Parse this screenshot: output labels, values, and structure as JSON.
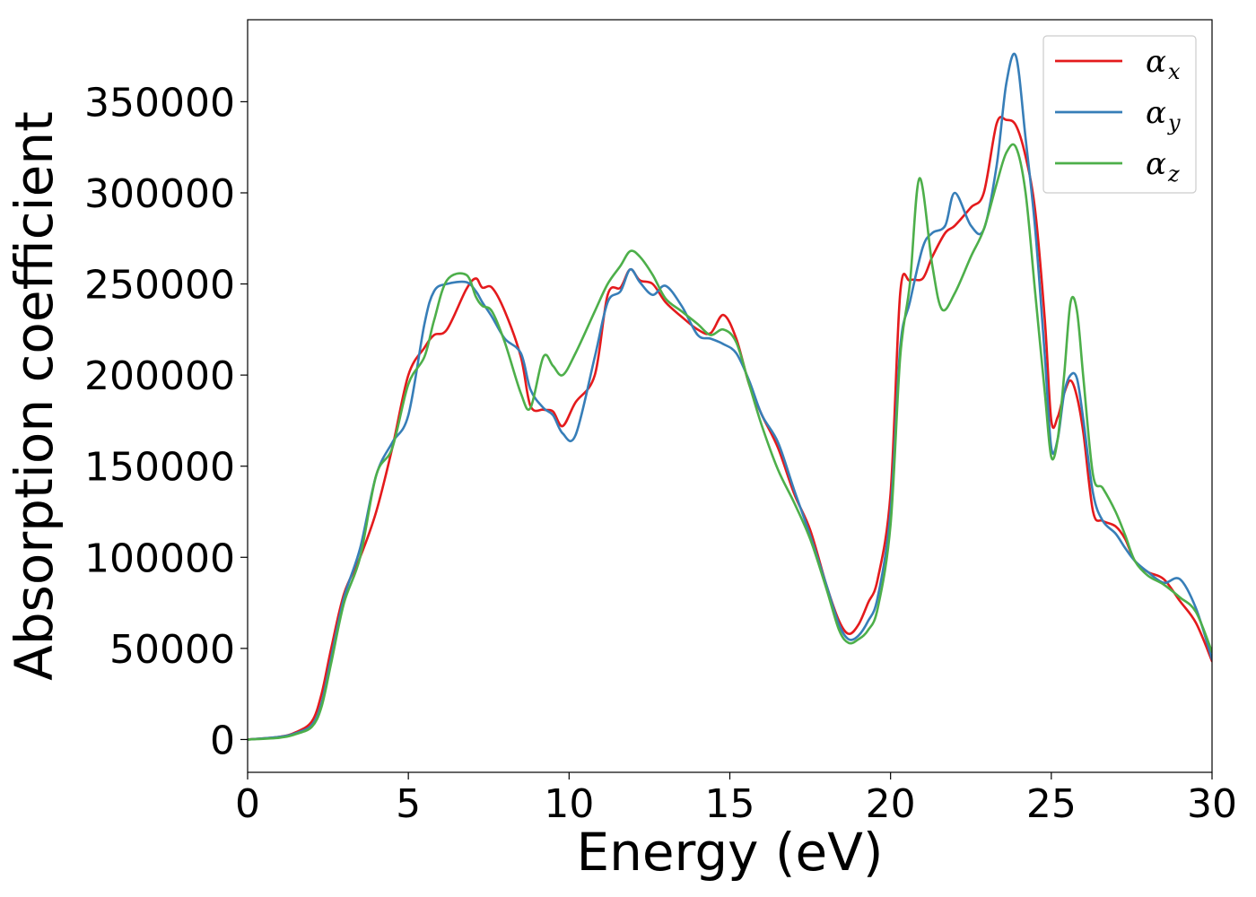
{
  "chart_data": {
    "type": "line",
    "title": "",
    "xlabel": "Energy (eV)",
    "ylabel": "Absorption coefficient",
    "xlim": [
      0,
      30
    ],
    "ylim": [
      -18000,
      395000
    ],
    "xticks": [
      0,
      5,
      10,
      15,
      20,
      25,
      30
    ],
    "xtick_labels": [
      "0",
      "5",
      "10",
      "15",
      "20",
      "25",
      "30"
    ],
    "yticks": [
      0,
      50000,
      100000,
      150000,
      200000,
      250000,
      300000,
      350000
    ],
    "ytick_labels": [
      "0",
      "50000",
      "100000",
      "150000",
      "200000",
      "250000",
      "300000",
      "350000"
    ],
    "grid": false,
    "legend_position": "top-right",
    "series": [
      {
        "name": "α",
        "subscript": "x",
        "color": "#e41a1c",
        "x": [
          0,
          1,
          1.5,
          2,
          2.3,
          2.6,
          3,
          3.5,
          4,
          4.5,
          5,
          5.5,
          5.8,
          6.2,
          6.8,
          7.1,
          7.3,
          7.6,
          8,
          8.5,
          8.8,
          9.2,
          9.5,
          9.8,
          10.2,
          10.8,
          11.2,
          11.6,
          11.9,
          12.2,
          12.6,
          13,
          13.5,
          14,
          14.4,
          14.8,
          15.2,
          15.6,
          16,
          16.5,
          17,
          17.5,
          18,
          18.4,
          18.7,
          19,
          19.3,
          19.6,
          20,
          20.3,
          20.6,
          21,
          21.3,
          21.7,
          22,
          22.5,
          22.9,
          23.3,
          23.6,
          23.9,
          24.2,
          24.5,
          24.8,
          25,
          25.2,
          25.4,
          25.6,
          25.8,
          26,
          26.3,
          26.6,
          27,
          27.3,
          27.6,
          28,
          28.5,
          29,
          29.5,
          30
        ],
        "y": [
          0,
          1500,
          4000,
          10000,
          25000,
          50000,
          80000,
          100000,
          125000,
          160000,
          200000,
          215000,
          222000,
          225000,
          247000,
          253000,
          248000,
          248000,
          235000,
          210000,
          183000,
          181000,
          180000,
          172000,
          185000,
          200000,
          244000,
          248000,
          258000,
          252000,
          250000,
          240000,
          232000,
          225000,
          223000,
          233000,
          220000,
          195000,
          178000,
          160000,
          135000,
          115000,
          85000,
          65000,
          58000,
          63000,
          75000,
          88000,
          135000,
          245000,
          252000,
          253000,
          265000,
          278000,
          282000,
          292000,
          300000,
          338000,
          340000,
          337000,
          320000,
          290000,
          230000,
          175000,
          177000,
          190000,
          197000,
          188000,
          168000,
          125000,
          120000,
          117000,
          110000,
          98000,
          92000,
          88000,
          76000,
          64000,
          43000
        ]
      },
      {
        "name": "α",
        "subscript": "y",
        "color": "#377eb8",
        "x": [
          0,
          1,
          1.5,
          2,
          2.3,
          2.6,
          3,
          3.5,
          4,
          4.5,
          5,
          5.5,
          5.8,
          6.2,
          6.8,
          7.1,
          7.3,
          7.6,
          8,
          8.5,
          8.8,
          9.2,
          9.5,
          9.8,
          10.2,
          10.8,
          11.2,
          11.6,
          11.9,
          12.2,
          12.6,
          13,
          13.5,
          14,
          14.4,
          14.8,
          15.2,
          15.6,
          16,
          16.5,
          17,
          17.5,
          18,
          18.4,
          18.7,
          19,
          19.3,
          19.6,
          20,
          20.3,
          20.6,
          21,
          21.3,
          21.7,
          22,
          22.5,
          22.9,
          23.3,
          23.6,
          23.9,
          24.2,
          24.5,
          24.8,
          25,
          25.2,
          25.4,
          25.6,
          25.8,
          26,
          26.3,
          26.6,
          27,
          27.3,
          27.6,
          28,
          28.5,
          29,
          29.5,
          30
        ],
        "y": [
          0,
          1500,
          3500,
          8000,
          20000,
          45000,
          78000,
          105000,
          145000,
          163000,
          178000,
          228000,
          246000,
          250000,
          251000,
          246000,
          240000,
          232000,
          220000,
          212000,
          192000,
          182000,
          178000,
          168000,
          167000,
          210000,
          240000,
          246000,
          258000,
          251000,
          244000,
          249000,
          238000,
          222000,
          220000,
          217000,
          212000,
          197000,
          178000,
          163000,
          137000,
          112000,
          85000,
          63000,
          55000,
          57000,
          65000,
          78000,
          125000,
          215000,
          240000,
          270000,
          278000,
          282000,
          300000,
          282000,
          280000,
          315000,
          360000,
          375000,
          330000,
          280000,
          210000,
          160000,
          165000,
          190000,
          200000,
          198000,
          175000,
          135000,
          120000,
          113000,
          105000,
          98000,
          92000,
          86000,
          88000,
          72000,
          44000
        ]
      },
      {
        "name": "α",
        "subscript": "z",
        "color": "#4daf4a",
        "x": [
          0,
          1,
          1.5,
          2,
          2.3,
          2.6,
          3,
          3.5,
          4,
          4.5,
          5,
          5.5,
          5.8,
          6.2,
          6.8,
          7.1,
          7.3,
          7.6,
          8,
          8.5,
          8.8,
          9.2,
          9.5,
          9.8,
          10.2,
          10.8,
          11.2,
          11.6,
          11.9,
          12.2,
          12.6,
          13,
          13.5,
          14,
          14.4,
          14.8,
          15.2,
          15.6,
          16,
          16.5,
          17,
          17.5,
          18,
          18.4,
          18.7,
          19,
          19.3,
          19.6,
          20,
          20.3,
          20.6,
          20.9,
          21.3,
          21.6,
          22,
          22.5,
          22.9,
          23.3,
          23.6,
          23.9,
          24.2,
          24.5,
          24.8,
          25,
          25.2,
          25.4,
          25.6,
          25.8,
          26,
          26.3,
          26.6,
          27,
          27.3,
          27.6,
          28,
          28.5,
          29,
          29.5,
          30
        ],
        "y": [
          0,
          1000,
          3000,
          7000,
          18000,
          42000,
          75000,
          100000,
          145000,
          160000,
          195000,
          210000,
          230000,
          252000,
          255000,
          243000,
          238000,
          235000,
          218000,
          190000,
          182000,
          210000,
          205000,
          200000,
          212000,
          235000,
          250000,
          260000,
          268000,
          265000,
          255000,
          242000,
          235000,
          228000,
          222000,
          225000,
          218000,
          195000,
          172000,
          148000,
          130000,
          110000,
          83000,
          60000,
          53000,
          55000,
          60000,
          72000,
          118000,
          210000,
          250000,
          308000,
          260000,
          236000,
          245000,
          265000,
          280000,
          305000,
          322000,
          325000,
          300000,
          245000,
          190000,
          155000,
          165000,
          200000,
          240000,
          235000,
          198000,
          145000,
          138000,
          125000,
          112000,
          98000,
          90000,
          85000,
          78000,
          70000,
          48000
        ]
      }
    ]
  }
}
